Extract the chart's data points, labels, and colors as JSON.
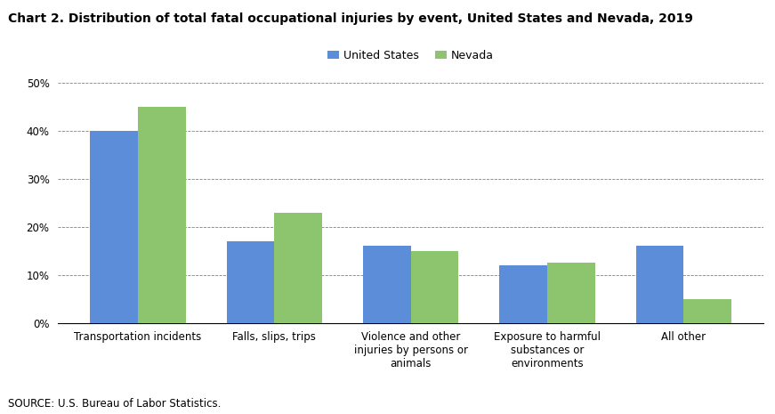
{
  "title": "Chart 2. Distribution of total fatal occupational injuries by event, United States and Nevada, 2019",
  "categories": [
    "Transportation incidents",
    "Falls, slips, trips",
    "Violence and other\ninjuries by persons or\nanimals",
    "Exposure to harmful\nsubstances or\nenvironments",
    "All other"
  ],
  "us_values": [
    0.4,
    0.17,
    0.16,
    0.12,
    0.16
  ],
  "nv_values": [
    0.45,
    0.23,
    0.15,
    0.125,
    0.05
  ],
  "us_color": "#5B8DD9",
  "nv_color": "#8DC46E",
  "legend_labels": [
    "United States",
    "Nevada"
  ],
  "ylim": [
    0,
    0.5
  ],
  "yticks": [
    0,
    0.1,
    0.2,
    0.3,
    0.4,
    0.5
  ],
  "source": "SOURCE: U.S. Bureau of Labor Statistics.",
  "bar_width": 0.35,
  "title_fontsize": 10,
  "axis_fontsize": 8.5,
  "legend_fontsize": 9,
  "source_fontsize": 8.5
}
